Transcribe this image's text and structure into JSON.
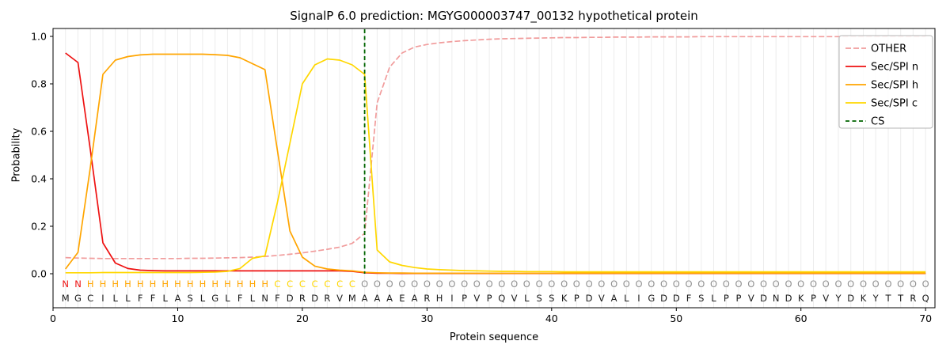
{
  "chart_data": {
    "type": "line",
    "title": "SignalP 6.0 prediction: MGYG000003747_00132 hypothetical protein",
    "xlabel": "Protein sequence",
    "ylabel": "Probability",
    "xlim": [
      0,
      70.75
    ],
    "ylim": [
      -0.145,
      1.035
    ],
    "xticks": [
      0,
      10,
      20,
      30,
      40,
      50,
      60,
      70
    ],
    "yticks": [
      0.0,
      0.2,
      0.4,
      0.6,
      0.8,
      1.0
    ],
    "grid": "vertical-per-residue",
    "legend_position": "upper right",
    "x_start": 1,
    "series": [
      {
        "name": "OTHER",
        "color": "#f19c9c",
        "dash": [
          7,
          3
        ],
        "values": [
          0.068,
          0.066,
          0.065,
          0.064,
          0.064,
          0.064,
          0.064,
          0.064,
          0.064,
          0.064,
          0.065,
          0.065,
          0.066,
          0.067,
          0.068,
          0.07,
          0.073,
          0.077,
          0.082,
          0.088,
          0.095,
          0.103,
          0.112,
          0.128,
          0.17,
          0.72,
          0.87,
          0.93,
          0.955,
          0.966,
          0.973,
          0.978,
          0.982,
          0.985,
          0.988,
          0.99,
          0.991,
          0.992,
          0.993,
          0.994,
          0.995,
          0.995,
          0.996,
          0.996,
          0.997,
          0.997,
          0.997,
          0.998,
          0.998,
          0.998,
          0.998,
          0.999,
          0.999,
          0.999,
          0.999,
          0.999,
          0.999,
          0.999,
          0.999,
          0.999,
          0.999,
          0.999,
          0.999,
          0.999,
          0.999,
          0.999,
          0.999,
          0.999,
          0.999,
          0.999
        ]
      },
      {
        "name": "Sec/SPI n",
        "color": "#ee1111",
        "dash": null,
        "values": [
          0.93,
          0.89,
          0.52,
          0.13,
          0.045,
          0.022,
          0.015,
          0.013,
          0.012,
          0.012,
          0.012,
          0.012,
          0.012,
          0.012,
          0.012,
          0.012,
          0.012,
          0.012,
          0.012,
          0.012,
          0.012,
          0.012,
          0.012,
          0.01,
          0.004,
          0.002,
          0.002,
          0.001,
          0.001,
          0.001,
          0.001,
          0.001,
          0.001,
          0.001,
          0.001,
          0.001,
          0.001,
          0.001,
          0.001,
          0.001,
          0.001,
          0.001,
          0.001,
          0.001,
          0.001,
          0.001,
          0.001,
          0.001,
          0.001,
          0.001,
          0.001,
          0.001,
          0.001,
          0.001,
          0.001,
          0.001,
          0.001,
          0.001,
          0.001,
          0.001,
          0.001,
          0.001,
          0.001,
          0.001,
          0.001,
          0.001,
          0.001,
          0.001,
          0.001,
          0.001
        ]
      },
      {
        "name": "Sec/SPI h",
        "color": "#ffa500",
        "dash": null,
        "values": [
          0.02,
          0.09,
          0.45,
          0.84,
          0.9,
          0.915,
          0.922,
          0.925,
          0.925,
          0.925,
          0.925,
          0.925,
          0.923,
          0.92,
          0.91,
          0.885,
          0.86,
          0.52,
          0.18,
          0.07,
          0.032,
          0.02,
          0.015,
          0.012,
          0.006,
          0.004,
          0.003,
          0.003,
          0.002,
          0.002,
          0.002,
          0.002,
          0.002,
          0.002,
          0.002,
          0.002,
          0.002,
          0.002,
          0.002,
          0.002,
          0.002,
          0.002,
          0.002,
          0.002,
          0.002,
          0.002,
          0.002,
          0.002,
          0.002,
          0.002,
          0.002,
          0.002,
          0.002,
          0.002,
          0.002,
          0.002,
          0.002,
          0.002,
          0.002,
          0.002,
          0.002,
          0.002,
          0.002,
          0.002,
          0.002,
          0.002,
          0.002,
          0.002,
          0.002,
          0.002
        ]
      },
      {
        "name": "Sec/SPI c",
        "color": "#ffd700",
        "dash": null,
        "values": [
          0.004,
          0.004,
          0.004,
          0.005,
          0.005,
          0.005,
          0.005,
          0.005,
          0.005,
          0.005,
          0.005,
          0.006,
          0.007,
          0.01,
          0.022,
          0.065,
          0.075,
          0.3,
          0.55,
          0.8,
          0.88,
          0.905,
          0.9,
          0.88,
          0.84,
          0.1,
          0.05,
          0.035,
          0.026,
          0.02,
          0.017,
          0.015,
          0.013,
          0.012,
          0.011,
          0.01,
          0.01,
          0.009,
          0.009,
          0.009,
          0.008,
          0.008,
          0.008,
          0.008,
          0.008,
          0.008,
          0.008,
          0.008,
          0.008,
          0.008,
          0.008,
          0.008,
          0.008,
          0.008,
          0.008,
          0.008,
          0.008,
          0.008,
          0.008,
          0.008,
          0.008,
          0.008,
          0.008,
          0.008,
          0.008,
          0.008,
          0.008,
          0.008,
          0.008,
          0.008
        ]
      }
    ],
    "cs": {
      "name": "CS",
      "position": 25,
      "color": "#006400",
      "dash": [
        5,
        3.5
      ]
    },
    "regions": {
      "labels": "NNHHHHHHHHHHHHHHHCCCCCCCOOOOOOOOOOOOOOOOOOOOOOOOOOOOOOOOOOOOOOOOOOOOOO",
      "colors": {
        "N": "#ee1111",
        "H": "#ffa500",
        "C": "#ffd700",
        "O": "#909090"
      }
    },
    "sequence": "MGCILLFFLASLGLFLNFDRDRVMAAAEARHIPVPQVLSSKPDVALIGDDFSLPPVDNDKPVYDKYTTRQ"
  }
}
